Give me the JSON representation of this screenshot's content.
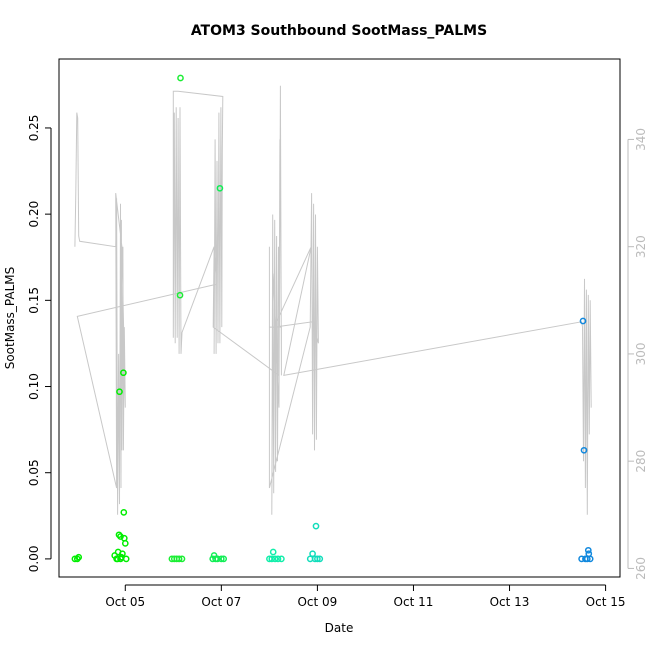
{
  "chart_data": {
    "type": "scatter",
    "title": "ATOM3 Southbound SootMass_PALMS",
    "xlabel": "Date",
    "ylabel": "SootMass_PALMS",
    "x_ticks": [
      "Oct 05",
      "Oct 07",
      "Oct 09",
      "Oct 11",
      "Oct 13",
      "Oct 15"
    ],
    "x_tick_days": [
      5,
      7,
      9,
      11,
      13,
      15
    ],
    "xlim": [
      3.62,
      15.3
    ],
    "ylim": [
      -0.0105,
      0.29
    ],
    "y_ticks": [
      "0.00",
      "0.05",
      "0.10",
      "0.15",
      "0.20",
      "0.25"
    ],
    "y_tick_values": [
      0,
      0.05,
      0.1,
      0.15,
      0.2,
      0.25
    ],
    "y2_ticks": [
      "260",
      "280",
      "300",
      "320",
      "340"
    ],
    "y2_tick_values": [
      260,
      280,
      300,
      320,
      340
    ],
    "y2lim": [
      258.4,
      355
    ],
    "grid": false,
    "colors": {
      "trace": "#c8c8c8",
      "y2_axis": "#bbbbbb",
      "axis": "#000000"
    },
    "series": [
      {
        "color": "#00ee00",
        "points": [
          {
            "x": 3.95,
            "y": 0.0
          },
          {
            "x": 4.0,
            "y": 0.0
          },
          {
            "x": 4.03,
            "y": 0.001
          },
          {
            "x": 4.78,
            "y": 0.002
          },
          {
            "x": 4.82,
            "y": 0.0
          },
          {
            "x": 4.85,
            "y": 0.004
          },
          {
            "x": 4.87,
            "y": 0.014
          },
          {
            "x": 4.88,
            "y": 0.097
          },
          {
            "x": 4.9,
            "y": 0.013
          },
          {
            "x": 4.92,
            "y": 0.001
          },
          {
            "x": 4.94,
            "y": 0.003
          },
          {
            "x": 4.96,
            "y": 0.108
          },
          {
            "x": 4.97,
            "y": 0.027
          },
          {
            "x": 4.98,
            "y": 0.012
          },
          {
            "x": 5.0,
            "y": 0.009
          },
          {
            "x": 5.02,
            "y": 0.0
          },
          {
            "x": 4.84,
            "y": 0.0
          },
          {
            "x": 4.9,
            "y": 0.0
          }
        ]
      },
      {
        "color": "#1aee33",
        "points": [
          {
            "x": 5.97,
            "y": 0.0
          },
          {
            "x": 6.02,
            "y": 0.0
          },
          {
            "x": 6.07,
            "y": 0.0
          },
          {
            "x": 6.12,
            "y": 0.0
          },
          {
            "x": 6.14,
            "y": 0.153
          },
          {
            "x": 6.15,
            "y": 0.279
          },
          {
            "x": 6.18,
            "y": 0.0
          }
        ]
      },
      {
        "color": "#11ee55",
        "points": [
          {
            "x": 6.82,
            "y": 0.0
          },
          {
            "x": 6.85,
            "y": 0.002
          },
          {
            "x": 6.88,
            "y": 0.0
          },
          {
            "x": 6.92,
            "y": 0.0
          },
          {
            "x": 6.97,
            "y": 0.215
          },
          {
            "x": 7.0,
            "y": 0.0
          },
          {
            "x": 7.05,
            "y": 0.0
          }
        ]
      },
      {
        "color": "#11eeaa",
        "points": [
          {
            "x": 8.0,
            "y": 0.0
          },
          {
            "x": 8.05,
            "y": 0.0
          },
          {
            "x": 8.08,
            "y": 0.004
          },
          {
            "x": 8.12,
            "y": 0.0
          },
          {
            "x": 8.18,
            "y": 0.0
          },
          {
            "x": 8.25,
            "y": 0.0
          }
        ]
      },
      {
        "color": "#11ddbb",
        "points": [
          {
            "x": 8.85,
            "y": 0.0
          },
          {
            "x": 8.9,
            "y": 0.003
          },
          {
            "x": 8.95,
            "y": 0.0
          },
          {
            "x": 8.97,
            "y": 0.019
          },
          {
            "x": 9.0,
            "y": 0.0
          },
          {
            "x": 9.05,
            "y": 0.0
          }
        ]
      },
      {
        "color": "#1188dd",
        "points": [
          {
            "x": 14.5,
            "y": 0.0
          },
          {
            "x": 14.53,
            "y": 0.138
          },
          {
            "x": 14.55,
            "y": 0.063
          },
          {
            "x": 14.58,
            "y": 0.0
          },
          {
            "x": 14.62,
            "y": 0.0
          },
          {
            "x": 14.64,
            "y": 0.005
          },
          {
            "x": 14.65,
            "y": 0.003
          },
          {
            "x": 14.68,
            "y": 0.0
          }
        ]
      }
    ],
    "secondary_trace": [
      {
        "x": 3.95,
        "y": 320
      },
      {
        "x": 3.97,
        "y": 330
      },
      {
        "x": 3.99,
        "y": 345
      },
      {
        "x": 4.01,
        "y": 344
      },
      {
        "x": 4.03,
        "y": 322
      },
      {
        "x": 4.05,
        "y": 321
      },
      {
        "x": 4.8,
        "y": 320
      },
      {
        "x": 4.82,
        "y": 329
      },
      {
        "x": 4.84,
        "y": 270
      },
      {
        "x": 4.86,
        "y": 300
      },
      {
        "x": 4.88,
        "y": 272
      },
      {
        "x": 4.9,
        "y": 328
      },
      {
        "x": 4.91,
        "y": 275
      },
      {
        "x": 4.92,
        "y": 325
      },
      {
        "x": 4.93,
        "y": 282
      },
      {
        "x": 4.95,
        "y": 320
      },
      {
        "x": 4.96,
        "y": 282
      },
      {
        "x": 4.98,
        "y": 305
      },
      {
        "x": 5.0,
        "y": 290
      },
      {
        "x": 4.93,
        "y": 320
      },
      {
        "x": 4.8,
        "y": 330
      },
      {
        "x": 4.82,
        "y": 275
      },
      {
        "x": 4.0,
        "y": 307
      },
      {
        "x": 6.9,
        "y": 313
      },
      {
        "x": 6.86,
        "y": 318
      },
      {
        "x": 6.85,
        "y": 300
      },
      {
        "x": 6.87,
        "y": 340
      },
      {
        "x": 6.89,
        "y": 300
      },
      {
        "x": 6.91,
        "y": 336
      },
      {
        "x": 6.93,
        "y": 302
      },
      {
        "x": 6.95,
        "y": 345
      },
      {
        "x": 6.97,
        "y": 302
      },
      {
        "x": 6.99,
        "y": 346
      },
      {
        "x": 7.01,
        "y": 305
      },
      {
        "x": 7.02,
        "y": 338
      },
      {
        "x": 7.03,
        "y": 348
      },
      {
        "x": 6.1,
        "y": 349
      },
      {
        "x": 6.0,
        "y": 349
      },
      {
        "x": 6.0,
        "y": 303
      },
      {
        "x": 6.02,
        "y": 345
      },
      {
        "x": 6.04,
        "y": 302
      },
      {
        "x": 6.06,
        "y": 346
      },
      {
        "x": 6.08,
        "y": 303
      },
      {
        "x": 6.1,
        "y": 344
      },
      {
        "x": 6.12,
        "y": 300
      },
      {
        "x": 6.14,
        "y": 346
      },
      {
        "x": 6.16,
        "y": 300
      },
      {
        "x": 6.18,
        "y": 304
      },
      {
        "x": 6.85,
        "y": 320
      },
      {
        "x": 6.83,
        "y": 305
      },
      {
        "x": 8.2,
        "y": 296
      },
      {
        "x": 8.22,
        "y": 340
      },
      {
        "x": 8.2,
        "y": 290
      },
      {
        "x": 8.08,
        "y": 315
      },
      {
        "x": 8.05,
        "y": 270
      },
      {
        "x": 8.07,
        "y": 326
      },
      {
        "x": 8.09,
        "y": 274
      },
      {
        "x": 8.11,
        "y": 325
      },
      {
        "x": 8.13,
        "y": 278
      },
      {
        "x": 8.15,
        "y": 322
      },
      {
        "x": 8.17,
        "y": 280
      },
      {
        "x": 8.19,
        "y": 320
      },
      {
        "x": 8.21,
        "y": 305
      },
      {
        "x": 8.23,
        "y": 350
      },
      {
        "x": 8.25,
        "y": 296
      },
      {
        "x": 8.25,
        "y": 305
      },
      {
        "x": 8.0,
        "y": 305
      },
      {
        "x": 8.0,
        "y": 320
      },
      {
        "x": 8.0,
        "y": 275
      },
      {
        "x": 8.85,
        "y": 305
      },
      {
        "x": 8.88,
        "y": 330
      },
      {
        "x": 8.9,
        "y": 285
      },
      {
        "x": 8.92,
        "y": 328
      },
      {
        "x": 8.94,
        "y": 282
      },
      {
        "x": 8.96,
        "y": 326
      },
      {
        "x": 8.98,
        "y": 284
      },
      {
        "x": 9.0,
        "y": 320
      },
      {
        "x": 9.02,
        "y": 302
      },
      {
        "x": 8.9,
        "y": 306
      },
      {
        "x": 8.1,
        "y": 305
      },
      {
        "x": 8.87,
        "y": 320
      },
      {
        "x": 8.3,
        "y": 296
      },
      {
        "x": 14.5,
        "y": 306
      },
      {
        "x": 14.52,
        "y": 305
      },
      {
        "x": 14.54,
        "y": 280
      },
      {
        "x": 14.56,
        "y": 314
      },
      {
        "x": 14.58,
        "y": 275
      },
      {
        "x": 14.6,
        "y": 312
      },
      {
        "x": 14.62,
        "y": 270
      },
      {
        "x": 14.64,
        "y": 311
      },
      {
        "x": 14.66,
        "y": 285
      },
      {
        "x": 14.68,
        "y": 310
      },
      {
        "x": 14.7,
        "y": 290
      }
    ]
  }
}
